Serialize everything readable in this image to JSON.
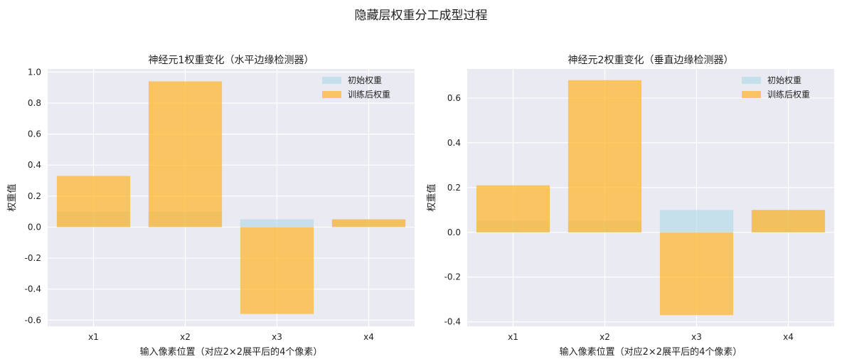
{
  "figure": {
    "title": "隐藏层权重分工成型过程"
  },
  "colors": {
    "initial": "#add8e6",
    "initial_alpha": 0.6,
    "trained": "#ffb732",
    "trained_alpha": 0.75,
    "plot_background": "#eaeaf2",
    "grid": "#ffffff"
  },
  "chart_data": [
    {
      "type": "bar",
      "title": "神经元1权重变化（水平边缘检测器）",
      "xlabel": "输入像素位置（对应2×2展平后的4个像素）",
      "ylabel": "权重值",
      "categories": [
        "x1",
        "x2",
        "x3",
        "x4"
      ],
      "series": [
        {
          "name": "初始权重",
          "values": [
            0.1,
            0.1,
            0.05,
            0.05
          ]
        },
        {
          "name": "训练后权重",
          "values": [
            0.33,
            0.94,
            -0.56,
            0.05
          ]
        }
      ],
      "ylim": [
        -0.64,
        1.02
      ],
      "yticks": [
        -0.6,
        -0.4,
        -0.2,
        0.0,
        0.2,
        0.4,
        0.6,
        0.8,
        1.0
      ],
      "ytick_labels": [
        "-0.6",
        "-0.4",
        "-0.2",
        "0.0",
        "0.2",
        "0.4",
        "0.6",
        "0.8",
        "1.0"
      ],
      "grid": true,
      "legend": "top-right"
    },
    {
      "type": "bar",
      "title": "神经元2权重变化（垂直边缘检测器）",
      "xlabel": "输入像素位置（对应2×2展平后的4个像素）",
      "ylabel": "权重值",
      "categories": [
        "x1",
        "x2",
        "x3",
        "x4"
      ],
      "series": [
        {
          "name": "初始权重",
          "values": [
            0.05,
            0.05,
            0.1,
            0.1
          ]
        },
        {
          "name": "训练后权重",
          "values": [
            0.21,
            0.68,
            -0.37,
            0.1
          ]
        }
      ],
      "ylim": [
        -0.42,
        0.73
      ],
      "yticks": [
        -0.4,
        -0.2,
        0.0,
        0.2,
        0.4,
        0.6
      ],
      "ytick_labels": [
        "-0.4",
        "-0.2",
        "0.0",
        "0.2",
        "0.4",
        "0.6"
      ],
      "grid": true,
      "legend": "top-right"
    }
  ]
}
